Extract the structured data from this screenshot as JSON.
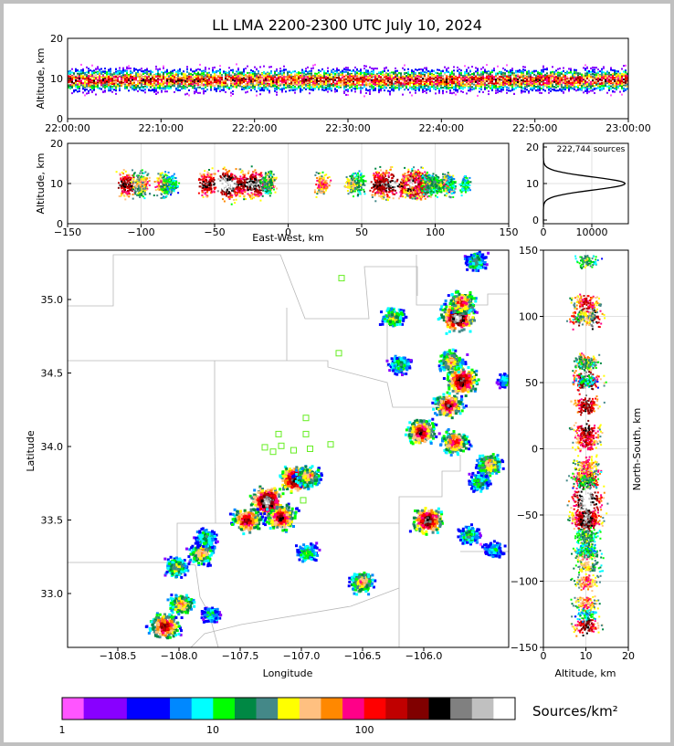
{
  "title": "LL LMA 2200-2300 UTC July 10, 2024",
  "source_count_label": "222,744 sources",
  "colorbar": {
    "label": "Sources/km²",
    "ticks": [
      "1",
      "10",
      "100"
    ],
    "colors": [
      "#ff55ff",
      "#8800ff",
      "#8800ff",
      "#0000ff",
      "#0000ff",
      "#0088ff",
      "#00ffff",
      "#00ff00",
      "#008844",
      "#448888",
      "#ffff00",
      "#ffc080",
      "#ff8800",
      "#ff0088",
      "#ff0000",
      "#c00000",
      "#800000",
      "#000000",
      "#808080",
      "#c0c0c0",
      "#ffffff"
    ]
  },
  "time_panel": {
    "ylabel": "Altitude, km",
    "yticks": [
      "0",
      "10",
      "20"
    ],
    "xticks": [
      "22:00:00",
      "22:10:00",
      "22:20:00",
      "22:30:00",
      "22:40:00",
      "22:50:00",
      "23:00:00"
    ]
  },
  "ew_panel": {
    "ylabel": "Altitude, km",
    "xlabel": "East-West, km",
    "yticks": [
      "0",
      "10",
      "20"
    ],
    "xticks": [
      "−150",
      "−100",
      "−50",
      "0",
      "50",
      "100",
      "150"
    ]
  },
  "hist_panel": {
    "yticks": [
      "0",
      "10",
      "20"
    ],
    "xticks": [
      "0",
      "10000"
    ]
  },
  "map_panel": {
    "xlabel": "Longitude",
    "ylabel": "Latitude",
    "xticks": [
      "−108.5",
      "−108.0",
      "−107.5",
      "−107.0",
      "−106.5",
      "−106.0"
    ],
    "yticks": [
      "33.0",
      "33.5",
      "34.0",
      "34.5",
      "35.0"
    ]
  },
  "ns_panel": {
    "xlabel": "Altitude, km",
    "ylabel": "North-South, km",
    "xticks": [
      "0",
      "10",
      "20"
    ],
    "yticks": [
      "−150",
      "−100",
      "−50",
      "0",
      "50",
      "100",
      "150"
    ]
  },
  "chart_data": {
    "type": "heatmap",
    "title": "LL LMA 2200-2300 UTC July 10, 2024",
    "total_sources": 222744,
    "colorbar_scale": "log",
    "colorbar_range": [
      1,
      1000
    ],
    "panels": {
      "time_altitude": {
        "xlim": [
          "22:00:00",
          "23:00:00"
        ],
        "ylim": [
          0,
          20
        ]
      },
      "ew_altitude": {
        "xlim": [
          -150,
          150
        ],
        "ylim": [
          0,
          20
        ]
      },
      "altitude_histogram": {
        "xlim": [
          0,
          13000
        ],
        "ylim": [
          0,
          20
        ],
        "peak_altitude_km": 10
      },
      "plan_view": {
        "xlim": [
          -108.82,
          -105.6
        ],
        "ylim": [
          32.65,
          35.35
        ]
      },
      "ns_altitude": {
        "xlim": [
          0,
          20
        ],
        "ylim": [
          -150,
          150
        ]
      }
    },
    "storm_cells": [
      {
        "lon": -107.37,
        "lat": 33.65,
        "intensity": 1.0
      },
      {
        "lon": -107.52,
        "lat": 33.52,
        "intensity": 0.8
      },
      {
        "lon": -107.27,
        "lat": 33.54,
        "intensity": 0.8
      },
      {
        "lon": -107.17,
        "lat": 33.8,
        "intensity": 0.9
      },
      {
        "lon": -107.07,
        "lat": 33.82,
        "intensity": 0.6
      },
      {
        "lon": -106.2,
        "lat": 33.52,
        "intensity": 0.9
      },
      {
        "lon": -106.25,
        "lat": 34.12,
        "intensity": 0.8
      },
      {
        "lon": -106.0,
        "lat": 34.05,
        "intensity": 0.7
      },
      {
        "lon": -105.75,
        "lat": 33.9,
        "intensity": 0.6
      },
      {
        "lon": -106.05,
        "lat": 34.3,
        "intensity": 0.8
      },
      {
        "lon": -105.95,
        "lat": 34.47,
        "intensity": 0.9
      },
      {
        "lon": -106.03,
        "lat": 34.6,
        "intensity": 0.6
      },
      {
        "lon": -105.98,
        "lat": 34.9,
        "intensity": 1.0
      },
      {
        "lon": -105.95,
        "lat": 35.0,
        "intensity": 0.7
      },
      {
        "lon": -106.45,
        "lat": 34.9,
        "intensity": 0.5
      },
      {
        "lon": -106.4,
        "lat": 34.58,
        "intensity": 0.4
      },
      {
        "lon": -105.85,
        "lat": 35.28,
        "intensity": 0.4
      },
      {
        "lon": -108.12,
        "lat": 32.8,
        "intensity": 0.8
      },
      {
        "lon": -108.0,
        "lat": 32.95,
        "intensity": 0.6
      },
      {
        "lon": -108.03,
        "lat": 33.2,
        "intensity": 0.5
      },
      {
        "lon": -107.85,
        "lat": 33.3,
        "intensity": 0.6
      },
      {
        "lon": -107.82,
        "lat": 33.4,
        "intensity": 0.4
      },
      {
        "lon": -106.68,
        "lat": 33.1,
        "intensity": 0.6
      },
      {
        "lon": -107.08,
        "lat": 33.3,
        "intensity": 0.4
      },
      {
        "lon": -105.9,
        "lat": 33.42,
        "intensity": 0.4
      },
      {
        "lon": -105.72,
        "lat": 33.32,
        "intensity": 0.3
      },
      {
        "lon": -107.78,
        "lat": 32.88,
        "intensity": 0.3
      },
      {
        "lon": -105.82,
        "lat": 33.78,
        "intensity": 0.4
      },
      {
        "lon": -105.62,
        "lat": 34.47,
        "intensity": 0.3
      }
    ],
    "station_markers": [
      {
        "lon": -106.82,
        "lat": 35.16
      },
      {
        "lon": -106.84,
        "lat": 34.65
      },
      {
        "lon": -107.08,
        "lat": 34.21
      },
      {
        "lon": -107.08,
        "lat": 34.1
      },
      {
        "lon": -107.28,
        "lat": 34.1
      },
      {
        "lon": -107.38,
        "lat": 34.01
      },
      {
        "lon": -107.26,
        "lat": 34.02
      },
      {
        "lon": -107.32,
        "lat": 33.98
      },
      {
        "lon": -107.17,
        "lat": 33.99
      },
      {
        "lon": -107.05,
        "lat": 34.0
      },
      {
        "lon": -106.9,
        "lat": 34.03
      },
      {
        "lon": -107.1,
        "lat": 33.65
      }
    ]
  }
}
